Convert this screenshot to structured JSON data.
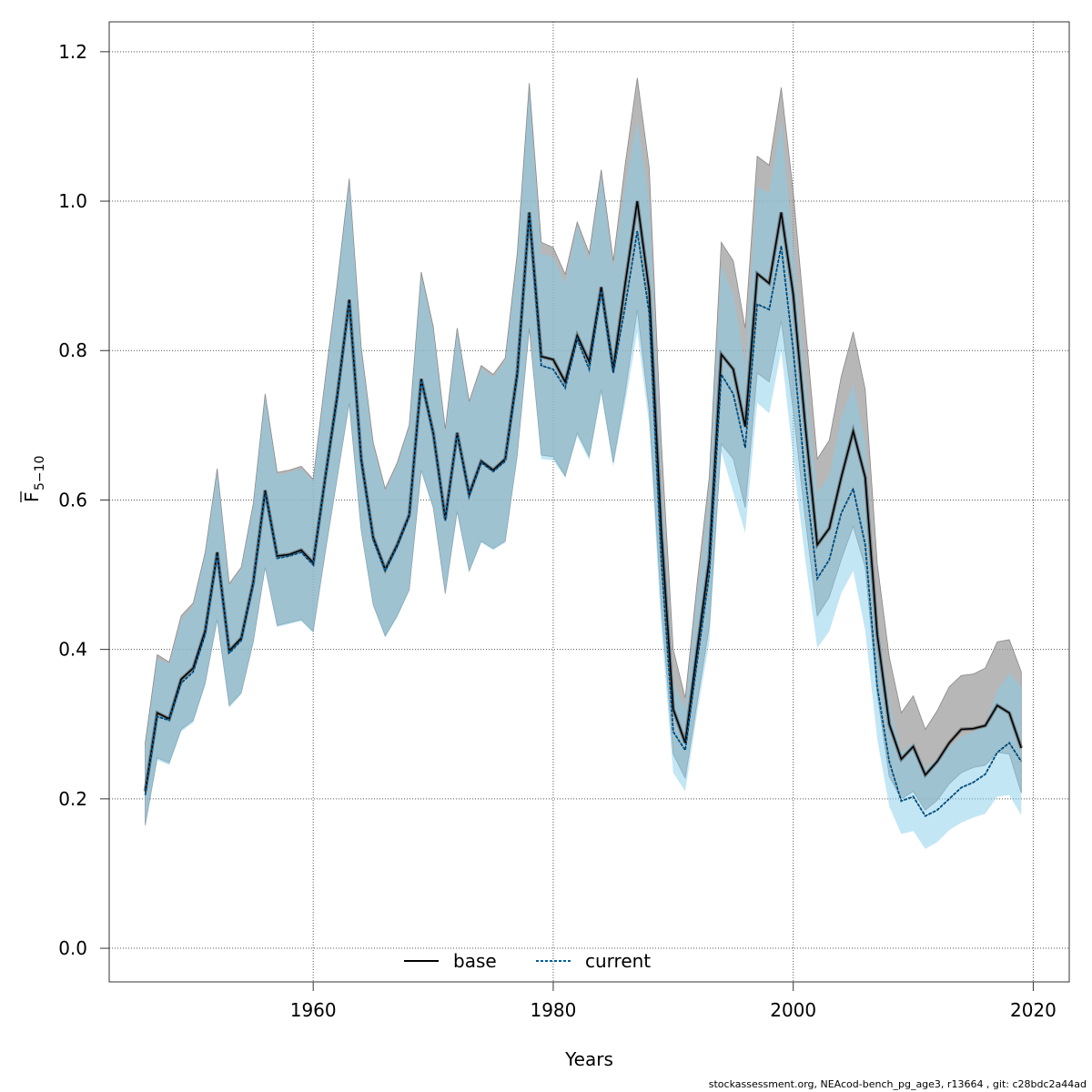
{
  "chart_data": {
    "type": "line",
    "xlabel": "Years",
    "ylabel": "F",
    "ylabel_subscript": "5−10",
    "xlim": [
      1943,
      2023
    ],
    "ylim": [
      -0.045,
      1.24
    ],
    "xticks": [
      1960,
      1980,
      2000,
      2020
    ],
    "yticks": [
      0.0,
      0.2,
      0.4,
      0.6,
      0.8,
      1.0,
      1.2
    ],
    "ytick_labels": [
      "0.0",
      "0.2",
      "0.4",
      "0.6",
      "0.8",
      "1.0",
      "1.2"
    ],
    "grid": true,
    "legend_position": "bottom-center",
    "x": [
      1946,
      1947,
      1948,
      1949,
      1950,
      1951,
      1952,
      1953,
      1954,
      1955,
      1956,
      1957,
      1958,
      1959,
      1960,
      1961,
      1962,
      1963,
      1964,
      1965,
      1966,
      1967,
      1968,
      1969,
      1970,
      1971,
      1972,
      1973,
      1974,
      1975,
      1976,
      1977,
      1978,
      1979,
      1980,
      1981,
      1982,
      1983,
      1984,
      1985,
      1986,
      1987,
      1988,
      1989,
      1990,
      1991,
      1992,
      1993,
      1994,
      1995,
      1996,
      1997,
      1998,
      1999,
      2000,
      2001,
      2002,
      2003,
      2004,
      2005,
      2006,
      2007,
      2008,
      2009,
      2010,
      2011,
      2012,
      2013,
      2014,
      2015,
      2016,
      2017,
      2018,
      2019
    ],
    "series": [
      {
        "name": "base",
        "line_color": "#000000",
        "band_color": "#999999",
        "values": [
          0.21,
          0.315,
          0.307,
          0.36,
          0.375,
          0.425,
          0.53,
          0.398,
          0.415,
          0.49,
          0.613,
          0.525,
          0.527,
          0.533,
          0.516,
          0.63,
          0.74,
          0.868,
          0.655,
          0.55,
          0.507,
          0.54,
          0.58,
          0.762,
          0.69,
          0.575,
          0.69,
          0.608,
          0.652,
          0.64,
          0.655,
          0.77,
          0.985,
          0.792,
          0.788,
          0.758,
          0.82,
          0.785,
          0.885,
          0.775,
          0.89,
          1.0,
          0.88,
          0.56,
          0.32,
          0.275,
          0.4,
          0.52,
          0.795,
          0.775,
          0.698,
          0.903,
          0.89,
          0.985,
          0.875,
          0.7,
          0.54,
          0.562,
          0.63,
          0.692,
          0.63,
          0.42,
          0.3,
          0.253,
          0.27,
          0.232,
          0.25,
          0.275,
          0.293,
          0.294,
          0.298,
          0.325,
          0.315,
          0.268
        ],
        "lower": [
          0.165,
          0.255,
          0.248,
          0.293,
          0.305,
          0.355,
          0.44,
          0.325,
          0.342,
          0.41,
          0.51,
          0.432,
          0.436,
          0.44,
          0.424,
          0.53,
          0.63,
          0.73,
          0.56,
          0.46,
          0.418,
          0.445,
          0.48,
          0.64,
          0.59,
          0.475,
          0.585,
          0.505,
          0.545,
          0.535,
          0.545,
          0.66,
          0.83,
          0.66,
          0.658,
          0.632,
          0.69,
          0.658,
          0.748,
          0.65,
          0.745,
          0.855,
          0.72,
          0.46,
          0.26,
          0.228,
          0.33,
          0.43,
          0.675,
          0.655,
          0.59,
          0.77,
          0.758,
          0.84,
          0.72,
          0.575,
          0.445,
          0.47,
          0.52,
          0.565,
          0.51,
          0.34,
          0.23,
          0.2,
          0.21,
          0.185,
          0.198,
          0.22,
          0.235,
          0.242,
          0.245,
          0.262,
          0.26,
          0.208
        ],
        "upper": [
          0.275,
          0.393,
          0.383,
          0.445,
          0.462,
          0.53,
          0.642,
          0.488,
          0.51,
          0.595,
          0.742,
          0.637,
          0.64,
          0.645,
          0.628,
          0.762,
          0.89,
          1.03,
          0.805,
          0.677,
          0.615,
          0.65,
          0.7,
          0.905,
          0.832,
          0.695,
          0.83,
          0.732,
          0.78,
          0.768,
          0.79,
          0.93,
          1.158,
          0.945,
          0.938,
          0.902,
          0.972,
          0.93,
          1.042,
          0.92,
          1.05,
          1.165,
          1.045,
          0.68,
          0.4,
          0.335,
          0.49,
          0.63,
          0.945,
          0.92,
          0.83,
          1.06,
          1.048,
          1.152,
          1.012,
          0.835,
          0.655,
          0.68,
          0.765,
          0.825,
          0.748,
          0.515,
          0.39,
          0.315,
          0.338,
          0.293,
          0.318,
          0.35,
          0.365,
          0.367,
          0.375,
          0.41,
          0.413,
          0.37
        ]
      },
      {
        "name": "current",
        "line_color": "#00609c",
        "band_color": "#87ceeb",
        "values": [
          0.205,
          0.31,
          0.305,
          0.355,
          0.37,
          0.42,
          0.527,
          0.395,
          0.412,
          0.487,
          0.61,
          0.522,
          0.525,
          0.53,
          0.513,
          0.628,
          0.735,
          0.865,
          0.652,
          0.547,
          0.505,
          0.538,
          0.578,
          0.76,
          0.688,
          0.572,
          0.688,
          0.605,
          0.65,
          0.638,
          0.652,
          0.765,
          0.982,
          0.78,
          0.775,
          0.75,
          0.815,
          0.775,
          0.88,
          0.77,
          0.86,
          0.96,
          0.85,
          0.52,
          0.29,
          0.265,
          0.385,
          0.5,
          0.768,
          0.742,
          0.67,
          0.862,
          0.855,
          0.94,
          0.8,
          0.63,
          0.495,
          0.52,
          0.582,
          0.615,
          0.54,
          0.35,
          0.25,
          0.197,
          0.203,
          0.177,
          0.185,
          0.2,
          0.215,
          0.222,
          0.233,
          0.262,
          0.275,
          0.25
        ],
        "lower": [
          0.162,
          0.252,
          0.245,
          0.29,
          0.302,
          0.352,
          0.437,
          0.322,
          0.34,
          0.408,
          0.508,
          0.43,
          0.434,
          0.438,
          0.422,
          0.528,
          0.627,
          0.728,
          0.557,
          0.458,
          0.416,
          0.443,
          0.478,
          0.638,
          0.588,
          0.473,
          0.583,
          0.503,
          0.543,
          0.533,
          0.543,
          0.655,
          0.83,
          0.655,
          0.653,
          0.63,
          0.685,
          0.653,
          0.742,
          0.645,
          0.73,
          0.825,
          0.7,
          0.43,
          0.235,
          0.21,
          0.315,
          0.41,
          0.665,
          0.61,
          0.556,
          0.73,
          0.716,
          0.8,
          0.655,
          0.52,
          0.402,
          0.424,
          0.475,
          0.505,
          0.425,
          0.28,
          0.19,
          0.153,
          0.157,
          0.133,
          0.142,
          0.158,
          0.168,
          0.175,
          0.18,
          0.203,
          0.205,
          0.178
        ],
        "upper": [
          0.27,
          0.388,
          0.38,
          0.44,
          0.458,
          0.527,
          0.638,
          0.485,
          0.508,
          0.592,
          0.738,
          0.633,
          0.637,
          0.642,
          0.625,
          0.758,
          0.885,
          1.025,
          0.8,
          0.673,
          0.612,
          0.647,
          0.697,
          0.9,
          0.828,
          0.69,
          0.826,
          0.728,
          0.776,
          0.764,
          0.786,
          0.92,
          1.15,
          0.93,
          0.925,
          0.89,
          0.968,
          0.92,
          1.035,
          0.91,
          1.02,
          1.108,
          1.0,
          0.63,
          0.355,
          0.32,
          0.47,
          0.605,
          0.915,
          0.875,
          0.78,
          1.02,
          1.01,
          1.108,
          0.935,
          0.76,
          0.61,
          0.632,
          0.71,
          0.755,
          0.678,
          0.44,
          0.33,
          0.262,
          0.275,
          0.24,
          0.254,
          0.27,
          0.283,
          0.29,
          0.298,
          0.345,
          0.368,
          0.35
        ]
      }
    ]
  },
  "footer": "stockassessment.org, NEAcod-bench_pg_age3, r13664 , git: c28bdc2a44ad"
}
